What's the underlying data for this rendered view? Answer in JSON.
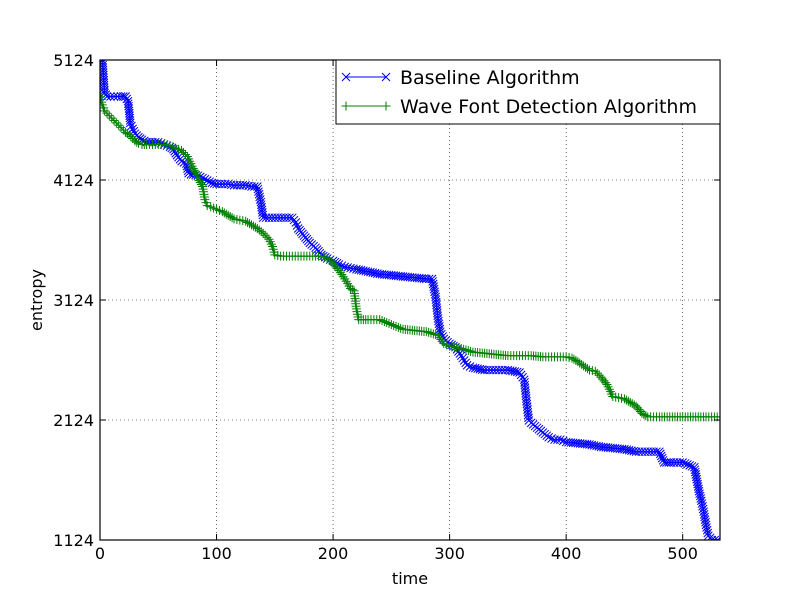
{
  "chart_data": {
    "type": "line",
    "title": "",
    "xlabel": "time",
    "ylabel": "entropy",
    "xlim": [
      0,
      532
    ],
    "ylim": [
      1124,
      5124
    ],
    "xticks": [
      "0",
      "100",
      "200",
      "300",
      "400",
      "500"
    ],
    "xtick_values": [
      0,
      100,
      200,
      300,
      400,
      500
    ],
    "yticks": [
      "1124",
      "2124",
      "3124",
      "4124",
      "5124"
    ],
    "ytick_values": [
      1124,
      2124,
      3124,
      4124,
      5124
    ],
    "grid": true,
    "legend_position": "top-right",
    "series": [
      {
        "name": "Baseline Algorithm",
        "color": "#0000ff",
        "marker": "x",
        "x": [
          0,
          2,
          4,
          6,
          9,
          12,
          15,
          18,
          20,
          22,
          24,
          25,
          26,
          28,
          30,
          33,
          36,
          40,
          45,
          50,
          55,
          60,
          63,
          66,
          70,
          74,
          76,
          78,
          80,
          84,
          88,
          92,
          96,
          100,
          105,
          110,
          115,
          120,
          125,
          130,
          135,
          138,
          140,
          145,
          150,
          155,
          160,
          165,
          168,
          170,
          175,
          180,
          185,
          190,
          195,
          200,
          205,
          210,
          215,
          220,
          230,
          240,
          250,
          260,
          270,
          280,
          285,
          288,
          290,
          292,
          295,
          300,
          305,
          310,
          315,
          320,
          330,
          340,
          350,
          360,
          364,
          366,
          368,
          370,
          375,
          380,
          385,
          390,
          395,
          400,
          410,
          420,
          430,
          440,
          450,
          460,
          470,
          480,
          484,
          490,
          500,
          510,
          512,
          514,
          516,
          518,
          520,
          522,
          525,
          530,
          532
        ],
        "y": [
          5124,
          5124,
          4850,
          4820,
          4820,
          4820,
          4820,
          4820,
          4820,
          4820,
          4780,
          4700,
          4600,
          4550,
          4510,
          4480,
          4460,
          4440,
          4440,
          4440,
          4420,
          4400,
          4380,
          4330,
          4280,
          4260,
          4180,
          4170,
          4170,
          4160,
          4140,
          4120,
          4100,
          4090,
          4090,
          4090,
          4080,
          4080,
          4080,
          4070,
          4070,
          3940,
          3810,
          3810,
          3810,
          3810,
          3810,
          3810,
          3770,
          3720,
          3660,
          3600,
          3560,
          3500,
          3470,
          3450,
          3420,
          3400,
          3390,
          3380,
          3360,
          3340,
          3330,
          3320,
          3310,
          3300,
          3300,
          3150,
          2970,
          2860,
          2800,
          2760,
          2730,
          2660,
          2580,
          2560,
          2540,
          2540,
          2540,
          2520,
          2460,
          2280,
          2120,
          2100,
          2060,
          2020,
          1980,
          1960,
          1960,
          1940,
          1930,
          1920,
          1900,
          1890,
          1880,
          1860,
          1860,
          1860,
          1770,
          1770,
          1770,
          1730,
          1630,
          1530,
          1450,
          1360,
          1250,
          1160,
          1124,
          1124,
          1124
        ]
      },
      {
        "name": "Wave Font Detection Algorithm",
        "color": "#008000",
        "marker": "+",
        "x": [
          0,
          2,
          4,
          6,
          8,
          10,
          12,
          14,
          16,
          18,
          20,
          22,
          25,
          28,
          30,
          33,
          36,
          40,
          45,
          50,
          55,
          60,
          65,
          70,
          75,
          80,
          82,
          85,
          88,
          90,
          92,
          95,
          100,
          105,
          110,
          115,
          120,
          125,
          130,
          135,
          140,
          145,
          148,
          150,
          155,
          160,
          170,
          180,
          190,
          195,
          200,
          205,
          210,
          215,
          218,
          220,
          222,
          230,
          240,
          250,
          260,
          270,
          280,
          290,
          295,
          300,
          310,
          320,
          330,
          340,
          350,
          360,
          370,
          380,
          390,
          400,
          405,
          410,
          420,
          425,
          430,
          435,
          440,
          445,
          450,
          455,
          460,
          465,
          470,
          475,
          480,
          500,
          520,
          532
        ],
        "y": [
          4840,
          4750,
          4700,
          4680,
          4660,
          4640,
          4620,
          4600,
          4580,
          4560,
          4540,
          4520,
          4500,
          4470,
          4450,
          4430,
          4420,
          4420,
          4420,
          4420,
          4420,
          4410,
          4390,
          4370,
          4320,
          4220,
          4190,
          4120,
          4070,
          3960,
          3910,
          3900,
          3880,
          3860,
          3830,
          3800,
          3790,
          3780,
          3750,
          3720,
          3680,
          3630,
          3570,
          3500,
          3490,
          3490,
          3490,
          3490,
          3490,
          3470,
          3430,
          3370,
          3300,
          3220,
          3200,
          3050,
          2960,
          2960,
          2960,
          2920,
          2880,
          2870,
          2860,
          2830,
          2760,
          2740,
          2720,
          2690,
          2680,
          2670,
          2660,
          2660,
          2660,
          2650,
          2650,
          2650,
          2640,
          2610,
          2540,
          2530,
          2480,
          2420,
          2320,
          2310,
          2300,
          2270,
          2240,
          2180,
          2150,
          2150,
          2150,
          2150,
          2150,
          2150
        ]
      }
    ]
  }
}
